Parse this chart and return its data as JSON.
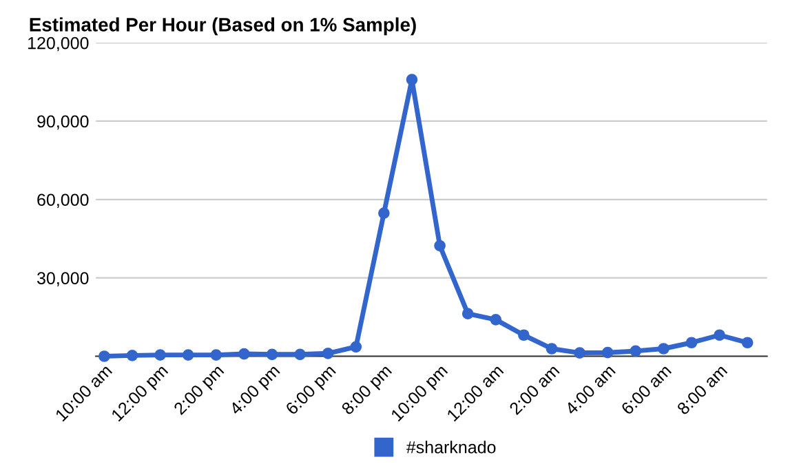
{
  "chart_data": {
    "type": "line",
    "title": "Estimated Per Hour (Based on 1% Sample)",
    "categories": [
      "10:00 am",
      null,
      "12:00 pm",
      null,
      "2:00 pm",
      null,
      "4:00 pm",
      null,
      "6:00 pm",
      null,
      "8:00 pm",
      null,
      "10:00 pm",
      null,
      "12:00 am",
      null,
      "2:00 am",
      null,
      "4:00 am",
      null,
      "6:00 am",
      null,
      "8:00 am",
      null
    ],
    "series": [
      {
        "name": "#sharknado",
        "color": "#3366cc",
        "values": [
          0,
          300,
          500,
          500,
          500,
          900,
          700,
          700,
          1100,
          3600,
          54800,
          105900,
          42300,
          16300,
          14000,
          8100,
          2900,
          1300,
          1400,
          2000,
          2900,
          5200,
          8100,
          5200
        ]
      }
    ],
    "ylim": [
      0,
      120000
    ],
    "yticks": [
      {
        "value": 0,
        "label": null
      },
      {
        "value": 30000,
        "label": "30,000"
      },
      {
        "value": 60000,
        "label": "60,000"
      },
      {
        "value": 90000,
        "label": "90,000"
      },
      {
        "value": 120000,
        "label": "120,000"
      }
    ],
    "grid": "y",
    "legend": "bottom",
    "marker": "circle",
    "line_style": "solid"
  }
}
